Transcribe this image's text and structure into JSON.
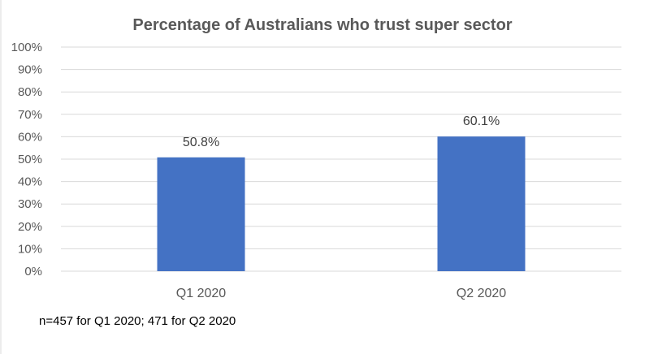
{
  "chart_data": {
    "type": "bar",
    "title": "Percentage of Australians who trust super sector",
    "categories": [
      "Q1 2020",
      "Q2 2020"
    ],
    "values": [
      50.8,
      60.1
    ],
    "data_labels": [
      "50.8%",
      "60.1%"
    ],
    "ylim": [
      0,
      100
    ],
    "yticks": [
      0,
      10,
      20,
      30,
      40,
      50,
      60,
      70,
      80,
      90,
      100
    ],
    "ytick_labels": [
      "0%",
      "10%",
      "20%",
      "30%",
      "40%",
      "50%",
      "60%",
      "70%",
      "80%",
      "90%",
      "100%"
    ],
    "xlabel": "",
    "ylabel": "",
    "grid": true,
    "legend": "none",
    "bar_color": "#4472C4",
    "grid_color": "#D9D9D9",
    "text_color": "#595959"
  },
  "footnote": "n=457 for Q1 2020;  471 for Q2 2020"
}
